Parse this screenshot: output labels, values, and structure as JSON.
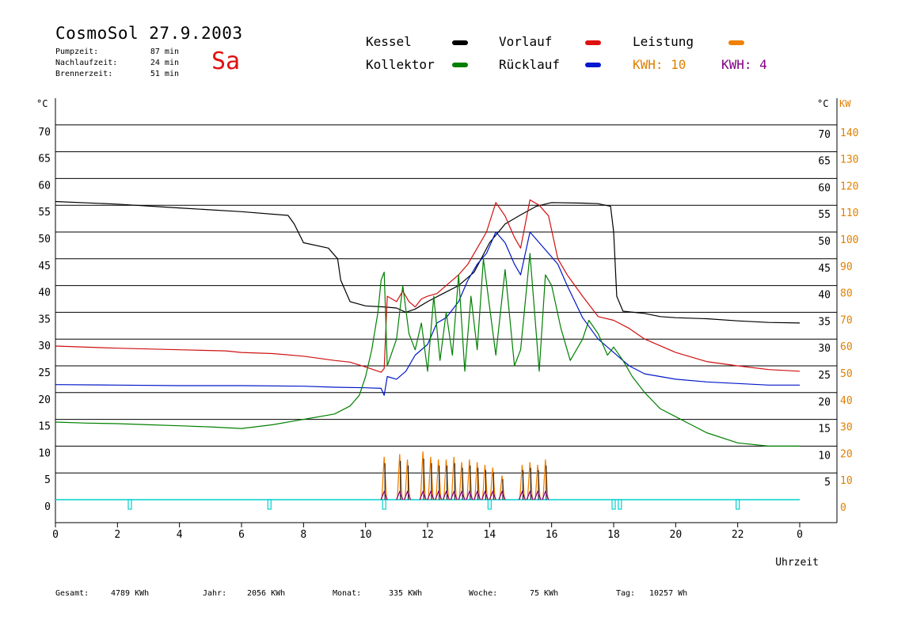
{
  "header": {
    "title": "CosmoSol 27.9.2003",
    "day": "Sa",
    "runtimes": [
      {
        "label": "Pumpzeit:",
        "value": "87 min"
      },
      {
        "label": "Nachlaufzeit:",
        "value": "24 min"
      },
      {
        "label": "Brennerzeit:",
        "value": "51 min"
      }
    ]
  },
  "legend": {
    "kessel": {
      "label": "Kessel",
      "color": "#000000"
    },
    "kollektor": {
      "label": "Kollektor",
      "color": "#008000"
    },
    "vorlauf": {
      "label": "Vorlauf",
      "color": "#e01010"
    },
    "ruecklauf": {
      "label": "Rücklauf",
      "color": "#0018d0"
    },
    "leistung": {
      "label": "Leistung",
      "color": "#f08000"
    },
    "kwh_orange": "KWH: 10",
    "kwh_purple": "KWH: 4"
  },
  "footer": {
    "gesamt_label": "Gesamt:",
    "gesamt_value": "4789 KWh",
    "jahr_label": "Jahr:",
    "jahr_value": "2056 KWh",
    "monat_label": "Monat:",
    "monat_value": "335 KWh",
    "woche_label": "Woche:",
    "woche_value": "75 KWh",
    "tag_label": "Tag:",
    "tag_value": "10257 Wh"
  },
  "chart_data": {
    "type": "line",
    "xlabel": "Uhrzeit",
    "ylabel_left": "°C",
    "ylabel_right": "°C",
    "ylabel_kw": "KW",
    "x_ticks": [
      "0",
      "2",
      "4",
      "6",
      "8",
      "10",
      "12",
      "14",
      "16",
      "18",
      "20",
      "22",
      "0"
    ],
    "y_left_ticks": [
      "0",
      "5",
      "10",
      "15",
      "20",
      "25",
      "30",
      "35",
      "40",
      "45",
      "50",
      "55",
      "60",
      "65",
      "70"
    ],
    "y_right_ticks": [
      "5",
      "10",
      "15",
      "20",
      "25",
      "30",
      "35",
      "40",
      "45",
      "50",
      "55",
      "60",
      "65",
      "70"
    ],
    "y_kw_ticks": [
      "0",
      "10",
      "20",
      "30",
      "40",
      "50",
      "60",
      "70",
      "80",
      "90",
      "100",
      "110",
      "120",
      "130",
      "140"
    ],
    "xlim": [
      0,
      24
    ],
    "ylim": [
      0,
      70
    ],
    "kw_lim": [
      0,
      140
    ],
    "grid": true,
    "colors": {
      "kessel": "#000000",
      "kollektor": "#008000",
      "vorlauf": "#d01010",
      "ruecklauf": "#0018c8",
      "leistung": "#f08000",
      "leistung2": "#800080",
      "pump": "#00d0d0",
      "kw_axis": "#e08000"
    },
    "series": [
      {
        "name": "Kessel",
        "key": "kessel",
        "points": [
          [
            0,
            55.7
          ],
          [
            2,
            55.2
          ],
          [
            4,
            54.5
          ],
          [
            6,
            53.8
          ],
          [
            7.5,
            53.1
          ],
          [
            7.7,
            51.5
          ],
          [
            8,
            48
          ],
          [
            8.8,
            47
          ],
          [
            9.1,
            45
          ],
          [
            9.2,
            41
          ],
          [
            9.5,
            37
          ],
          [
            10,
            36.2
          ],
          [
            10.6,
            36
          ],
          [
            11,
            35.8
          ],
          [
            11.3,
            35
          ],
          [
            11.6,
            35.6
          ],
          [
            12,
            37
          ],
          [
            12.5,
            38.5
          ],
          [
            13,
            40
          ],
          [
            13.5,
            42.5
          ],
          [
            14,
            48
          ],
          [
            14.5,
            51.5
          ],
          [
            15,
            53.2
          ],
          [
            15.5,
            54.8
          ],
          [
            16,
            55.5
          ],
          [
            17,
            55.4
          ],
          [
            17.5,
            55.3
          ],
          [
            17.9,
            54.8
          ],
          [
            18,
            50
          ],
          [
            18.1,
            38
          ],
          [
            18.3,
            35.2
          ],
          [
            19,
            34.8
          ],
          [
            19.5,
            34.2
          ],
          [
            20,
            34
          ],
          [
            21,
            33.8
          ],
          [
            22,
            33.4
          ],
          [
            23,
            33.1
          ],
          [
            24,
            33
          ]
        ]
      },
      {
        "name": "Vorlauf",
        "key": "vorlauf",
        "points": [
          [
            0,
            28.7
          ],
          [
            2,
            28.3
          ],
          [
            4,
            28
          ],
          [
            5.5,
            27.8
          ],
          [
            6,
            27.5
          ],
          [
            7,
            27.3
          ],
          [
            8,
            26.8
          ],
          [
            9,
            26
          ],
          [
            9.5,
            25.7
          ],
          [
            10,
            24.8
          ],
          [
            10.5,
            23.8
          ],
          [
            10.6,
            24.5
          ],
          [
            10.7,
            38
          ],
          [
            11,
            37
          ],
          [
            11.2,
            39
          ],
          [
            11.4,
            37
          ],
          [
            11.6,
            36
          ],
          [
            11.8,
            37.5
          ],
          [
            12,
            38
          ],
          [
            12.3,
            38.5
          ],
          [
            12.6,
            40
          ],
          [
            13,
            42
          ],
          [
            13.3,
            44
          ],
          [
            13.6,
            47
          ],
          [
            13.9,
            50
          ],
          [
            14.2,
            55.5
          ],
          [
            14.5,
            53
          ],
          [
            14.8,
            49
          ],
          [
            15,
            47
          ],
          [
            15.3,
            56
          ],
          [
            15.6,
            55
          ],
          [
            15.9,
            53
          ],
          [
            16.2,
            45
          ],
          [
            16.5,
            42
          ],
          [
            17,
            38
          ],
          [
            17.5,
            34.2
          ],
          [
            18,
            33.5
          ],
          [
            18.5,
            32
          ],
          [
            19,
            30
          ],
          [
            20,
            27.5
          ],
          [
            21,
            25.8
          ],
          [
            22,
            25
          ],
          [
            23,
            24.3
          ],
          [
            24,
            24
          ]
        ]
      },
      {
        "name": "Rücklauf",
        "key": "ruecklauf",
        "points": [
          [
            0,
            21.5
          ],
          [
            2,
            21.4
          ],
          [
            4,
            21.3
          ],
          [
            6,
            21.3
          ],
          [
            8,
            21.2
          ],
          [
            9,
            21
          ],
          [
            10,
            20.9
          ],
          [
            10.5,
            20.8
          ],
          [
            10.6,
            19.5
          ],
          [
            10.7,
            23
          ],
          [
            11,
            22.5
          ],
          [
            11.3,
            24
          ],
          [
            11.6,
            27
          ],
          [
            12,
            29
          ],
          [
            12.3,
            33
          ],
          [
            12.6,
            34
          ],
          [
            13,
            37
          ],
          [
            13.3,
            41
          ],
          [
            13.6,
            44
          ],
          [
            13.9,
            46
          ],
          [
            14.2,
            50
          ],
          [
            14.5,
            48
          ],
          [
            14.8,
            44
          ],
          [
            15,
            42
          ],
          [
            15.3,
            50
          ],
          [
            15.6,
            48
          ],
          [
            15.9,
            46
          ],
          [
            16.2,
            44
          ],
          [
            16.5,
            40
          ],
          [
            17,
            34
          ],
          [
            17.5,
            30
          ],
          [
            18,
            27.5
          ],
          [
            18.5,
            25
          ],
          [
            19,
            23.5
          ],
          [
            20,
            22.5
          ],
          [
            21,
            22
          ],
          [
            22,
            21.7
          ],
          [
            23,
            21.4
          ],
          [
            24,
            21.4
          ]
        ]
      },
      {
        "name": "Kollektor",
        "key": "kollektor",
        "points": [
          [
            0,
            14.5
          ],
          [
            1,
            14.3
          ],
          [
            2,
            14.2
          ],
          [
            3,
            14
          ],
          [
            4,
            13.8
          ],
          [
            5,
            13.6
          ],
          [
            6,
            13.3
          ],
          [
            7,
            14
          ],
          [
            8,
            15
          ],
          [
            9,
            16
          ],
          [
            9.5,
            17.5
          ],
          [
            9.8,
            19.5
          ],
          [
            10,
            23
          ],
          [
            10.2,
            28
          ],
          [
            10.4,
            35
          ],
          [
            10.5,
            41
          ],
          [
            10.6,
            42.5
          ],
          [
            10.7,
            25
          ],
          [
            11,
            30
          ],
          [
            11.2,
            40
          ],
          [
            11.4,
            31
          ],
          [
            11.6,
            28
          ],
          [
            11.8,
            33
          ],
          [
            12,
            24
          ],
          [
            12.2,
            38
          ],
          [
            12.4,
            26
          ],
          [
            12.6,
            35
          ],
          [
            12.8,
            27
          ],
          [
            13,
            42
          ],
          [
            13.2,
            24
          ],
          [
            13.4,
            38
          ],
          [
            13.6,
            28
          ],
          [
            13.8,
            45
          ],
          [
            14,
            36
          ],
          [
            14.2,
            27
          ],
          [
            14.5,
            43
          ],
          [
            14.8,
            25
          ],
          [
            15,
            28
          ],
          [
            15.3,
            46
          ],
          [
            15.6,
            24
          ],
          [
            15.8,
            42
          ],
          [
            16,
            40
          ],
          [
            16.3,
            32
          ],
          [
            16.6,
            26
          ],
          [
            17,
            30
          ],
          [
            17.2,
            33.5
          ],
          [
            17.5,
            31
          ],
          [
            17.8,
            27
          ],
          [
            18,
            28.5
          ],
          [
            18.3,
            26
          ],
          [
            18.6,
            23
          ],
          [
            19,
            20
          ],
          [
            19.5,
            17
          ],
          [
            20,
            15.5
          ],
          [
            20.5,
            14
          ],
          [
            21,
            12.5
          ],
          [
            22,
            10.6
          ],
          [
            23,
            10
          ],
          [
            24,
            10
          ]
        ]
      }
    ],
    "power_spikes": [
      {
        "x": 10.6,
        "kw": 16
      },
      {
        "x": 11.1,
        "kw": 17
      },
      {
        "x": 11.35,
        "kw": 15
      },
      {
        "x": 11.85,
        "kw": 18
      },
      {
        "x": 12.1,
        "kw": 16
      },
      {
        "x": 12.35,
        "kw": 15
      },
      {
        "x": 12.6,
        "kw": 15
      },
      {
        "x": 12.85,
        "kw": 16
      },
      {
        "x": 13.1,
        "kw": 14
      },
      {
        "x": 13.35,
        "kw": 15
      },
      {
        "x": 13.6,
        "kw": 14
      },
      {
        "x": 13.85,
        "kw": 13
      },
      {
        "x": 14.1,
        "kw": 12
      },
      {
        "x": 14.4,
        "kw": 9
      },
      {
        "x": 15.05,
        "kw": 13
      },
      {
        "x": 15.3,
        "kw": 14
      },
      {
        "x": 15.55,
        "kw": 13
      },
      {
        "x": 15.8,
        "kw": 15
      }
    ],
    "pump_events": [
      2.4,
      6.9,
      10.6,
      14,
      18,
      18.2,
      22
    ]
  }
}
